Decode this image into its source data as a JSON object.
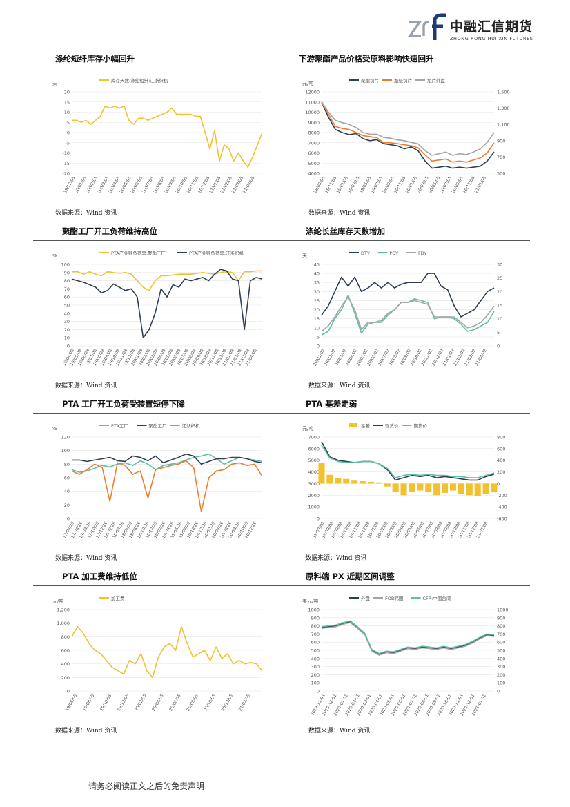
{
  "header": {
    "logo_mark": "zrf",
    "company_cn": "中融汇信期货",
    "company_en": "ZHONG RONG HUI XIN FUTURES",
    "brand_color": "#1f3b73"
  },
  "sections": [
    {
      "title": "涤纶短纤库存小幅回升",
      "source": "数据来源：Wind 资讯"
    },
    {
      "title": "下游聚酯产品价格受原料影响快速回升",
      "source": "数据来源：Wind 资讯"
    },
    {
      "title": "聚酯工厂开工负荷维持高位",
      "source": "数据来源：Wind 资讯"
    },
    {
      "title": "涤纶长丝库存天数增加",
      "source": "数据来源：Wind 资讯"
    },
    {
      "title": "PTA 工厂开工负荷受装置短停下降",
      "source": "数据来源：Wind 资讯"
    },
    {
      "title": "PTA 基差走弱",
      "source": "数据来源：Wind 资讯"
    },
    {
      "title": "PTA 加工费维持低位",
      "source": "数据来源：Wind 资讯"
    },
    {
      "title": "原料端 PX 近期区间调整",
      "source": "数据来源：Wind 资讯"
    }
  ],
  "footer": {
    "disclaimer": "请务必阅读正文之后的免责声明"
  },
  "chart_data": [
    {
      "type": "line",
      "yunit": "天",
      "ylim": [
        -20,
        20
      ],
      "yticks": [
        "20",
        "15",
        "10",
        "5",
        "0",
        "-5",
        "-10",
        "-15",
        "-20"
      ],
      "xticks": [
        "19/12/05",
        "20/01/05",
        "20/02/05",
        "20/03/05",
        "20/04/05",
        "20/05/05",
        "20/06/05",
        "20/07/05",
        "20/08/05",
        "20/09/05",
        "20/10/05",
        "20/11/05",
        "20/12/05",
        "21/01/05",
        "21/02/05",
        "21/03/05",
        "21/04/05"
      ],
      "legend": [
        "库存天数:涤纶短纤:江浙织机"
      ],
      "colors": [
        "#f2c12e"
      ],
      "series": [
        {
          "name": "库存天数:涤纶短纤:江浙织机",
          "values": [
            6,
            6,
            5,
            6,
            4,
            6,
            8,
            13,
            12,
            13,
            12,
            13,
            6,
            4,
            7,
            7,
            6,
            7,
            8,
            9,
            10,
            12,
            9,
            9,
            9,
            9,
            8,
            8,
            0,
            -8,
            1,
            -14,
            -6,
            -8,
            -14,
            -10,
            -14,
            -17,
            -12,
            -6,
            0
          ]
        }
      ]
    },
    {
      "type": "line",
      "yunit": "元/吨",
      "ylim": [
        4000,
        12000
      ],
      "y2lim": [
        500,
        1500
      ],
      "yticks": [
        "12000",
        "11000",
        "10000",
        "9000",
        "8000",
        "7000",
        "6000",
        "5000",
        "4000"
      ],
      "y2ticks": [
        "1,500",
        "1,300",
        "1,100",
        "900",
        "700",
        "500"
      ],
      "xticks": [
        "18/09/05",
        "18/11/05",
        "19/01/05",
        "19/03/05",
        "19/05/05",
        "19/07/05",
        "19/09/05",
        "19/11/05",
        "20/01/05",
        "20/03/05",
        "20/05/05",
        "20/07/05",
        "20/09/05",
        "20/11/05",
        "21/01/05"
      ],
      "legend": [
        "聚酯切片",
        "瓶级切片",
        "瓶片外盘"
      ],
      "colors": [
        "#2e3f55",
        "#ed7d31",
        "#a5a5a5"
      ],
      "series": [
        {
          "name": "聚酯切片",
          "values": [
            11000,
            9500,
            8300,
            8000,
            7800,
            7900,
            7400,
            7200,
            7300,
            6900,
            6800,
            6700,
            6400,
            6600,
            6200,
            5200,
            4500,
            4600,
            4700,
            4500,
            4600,
            4500,
            4600,
            4700,
            5200,
            6100
          ]
        },
        {
          "name": "瓶级切片",
          "values": [
            11000,
            9800,
            8600,
            8400,
            8300,
            8000,
            7700,
            7600,
            7500,
            7000,
            7000,
            6900,
            6800,
            6700,
            6500,
            5800,
            5200,
            5300,
            5400,
            5100,
            5200,
            5100,
            5300,
            5500,
            6000,
            7000
          ]
        },
        {
          "name": "瓶片外盘",
          "values": [
            1380,
            1250,
            1150,
            1120,
            1100,
            1060,
            1000,
            980,
            980,
            940,
            930,
            910,
            900,
            880,
            860,
            780,
            720,
            740,
            760,
            720,
            740,
            730,
            760,
            800,
            880,
            1000
          ]
        }
      ]
    },
    {
      "type": "line",
      "yunit": "%",
      "ylim": [
        0,
        100
      ],
      "yticks": [
        "100",
        "90",
        "80",
        "70",
        "60",
        "50",
        "40",
        "30",
        "20",
        "10",
        "0"
      ],
      "xticks": [
        "19/04/08",
        "19/05/08",
        "19/06/08",
        "19/07/08",
        "19/08/08",
        "19/09/08",
        "19/10/08",
        "19/11/08",
        "19/12/08",
        "20/01/08",
        "20/02/08",
        "20/03/08",
        "20/04/08",
        "20/05/08",
        "20/06/08",
        "20/07/08",
        "20/08/08",
        "20/09/08",
        "20/10/08",
        "20/11/08",
        "20/12/08",
        "21/01/08",
        "21/02/08",
        "21/03/08",
        "21/04/08"
      ],
      "legend": [
        "PTA产业链负荷率:聚酯工厂",
        "PTA产业链负荷率:江浙织机"
      ],
      "colors": [
        "#f2c12e",
        "#2e3f55"
      ],
      "series": [
        {
          "name": "PTA产业链负荷率:聚酯工厂",
          "values": [
            91,
            91,
            88,
            91,
            88,
            86,
            91,
            90,
            89,
            90,
            88,
            80,
            72,
            68,
            80,
            86,
            86,
            87,
            88,
            88,
            88,
            89,
            90,
            89,
            88,
            90,
            91,
            90,
            80,
            91,
            91,
            92,
            92
          ]
        },
        {
          "name": "PTA产业链负荷率:江浙织机",
          "values": [
            82,
            80,
            78,
            75,
            72,
            65,
            68,
            76,
            72,
            68,
            70,
            60,
            10,
            20,
            40,
            70,
            60,
            75,
            72,
            82,
            80,
            82,
            84,
            80,
            88,
            94,
            92,
            82,
            80,
            20,
            80,
            84,
            82
          ]
        }
      ]
    },
    {
      "type": "line",
      "yunit": "天",
      "ylim": [
        0,
        45
      ],
      "y2lim": [
        0,
        30
      ],
      "yticks": [
        "45",
        "40",
        "35",
        "30",
        "25",
        "20",
        "15",
        "10",
        "5",
        "0"
      ],
      "y2ticks": [
        "30",
        "25",
        "20",
        "15",
        "10",
        "5",
        "0"
      ],
      "xticks": [
        "20/01/02",
        "20/02/02",
        "20/03/02",
        "20/04/02",
        "20/05/02",
        "20/06/02",
        "20/07/02",
        "20/08/02",
        "20/09/02",
        "20/10/02",
        "20/11/02",
        "20/12/02",
        "21/01/02",
        "21/02/02",
        "21/03/02",
        "21/04/02"
      ],
      "legend": [
        "DTY",
        "POY",
        "FDY"
      ],
      "colors": [
        "#2e3f55",
        "#5bbfa3",
        "#a5a5a5"
      ],
      "series": [
        {
          "name": "DTY",
          "values": [
            17,
            22,
            30,
            38,
            33,
            38,
            30,
            32,
            35,
            32,
            35,
            32,
            34,
            35,
            35,
            35,
            40,
            40,
            33,
            31,
            22,
            16,
            18,
            20,
            25,
            30,
            32
          ]
        },
        {
          "name": "POY",
          "values": [
            6,
            8,
            15,
            20,
            28,
            18,
            7,
            12,
            13,
            13,
            17,
            20,
            24,
            24,
            26,
            25,
            24,
            15,
            16,
            16,
            15,
            12,
            8,
            9,
            11,
            13,
            19
          ]
        },
        {
          "name": "FDY",
          "values": [
            8,
            11,
            16,
            22,
            27,
            20,
            9,
            13,
            13,
            14,
            18,
            20,
            24,
            24,
            25,
            24,
            23,
            16,
            16,
            16,
            16,
            13,
            10,
            11,
            13,
            17,
            22
          ]
        }
      ]
    },
    {
      "type": "line",
      "yunit": "%",
      "ylim": [
        0,
        120
      ],
      "yticks": [
        "120",
        "100",
        "80",
        "60",
        "40",
        "20",
        "0"
      ],
      "xticks": [
        "17/04/26",
        "17/06/26",
        "17/08/26",
        "17/10/26",
        "17/12/26",
        "18/02/26",
        "18/04/26",
        "18/06/26",
        "18/08/26",
        "18/10/26",
        "18/12/26",
        "19/02/26",
        "19/04/26",
        "19/06/26",
        "19/08/26",
        "19/10/26",
        "19/12/26",
        "20/02/26",
        "20/04/26",
        "20/06/26",
        "20/08/26",
        "20/10/26",
        "20/12/26"
      ],
      "legend": [
        "PTA工厂",
        "聚酯工厂",
        "江浙织机"
      ],
      "colors": [
        "#5bbfa3",
        "#2e3f55",
        "#ed7d31"
      ],
      "series": [
        {
          "name": "PTA工厂",
          "values": [
            72,
            68,
            70,
            74,
            78,
            76,
            80,
            82,
            78,
            85,
            80,
            72,
            78,
            80,
            82,
            86,
            90,
            92,
            95,
            88,
            80,
            85,
            90,
            88,
            86,
            84
          ]
        },
        {
          "name": "聚酯工厂",
          "values": [
            86,
            86,
            84,
            86,
            88,
            90,
            85,
            84,
            92,
            90,
            85,
            92,
            82,
            86,
            90,
            95,
            92,
            80,
            84,
            88,
            88,
            90,
            90,
            88,
            84,
            82
          ]
        },
        {
          "name": "江浙织机",
          "values": [
            70,
            65,
            72,
            80,
            75,
            25,
            82,
            78,
            65,
            70,
            30,
            72,
            75,
            78,
            80,
            85,
            75,
            10,
            60,
            70,
            72,
            80,
            82,
            78,
            80,
            62
          ]
        }
      ]
    },
    {
      "type": "line",
      "yunit": "元/吨",
      "ylim": [
        0,
        7000
      ],
      "y2lim": [
        -600,
        800
      ],
      "yticks": [
        "7000",
        "6000",
        "5000",
        "4000",
        "3000",
        "2000",
        "1000",
        "0"
      ],
      "y2ticks": [
        "800",
        "600",
        "400",
        "200",
        "0",
        "-200",
        "-400",
        "-600"
      ],
      "xticks": [
        "19/07/08",
        "19/08/08",
        "19/09/08",
        "19/10/08",
        "19/11/08",
        "19/12/08",
        "20/01/08",
        "20/02/08",
        "20/03/08",
        "20/04/08",
        "20/05/08",
        "20/06/08",
        "20/07/08",
        "20/08/08",
        "20/09/08",
        "20/10/08",
        "20/11/08",
        "20/12/08",
        "21/01/08"
      ],
      "legend": [
        "基差",
        "现货价",
        "期货价"
      ],
      "colors": [
        "#f2c12e",
        "#2e3f55",
        "#5bbfa3"
      ],
      "series": [
        {
          "name": "基差",
          "values": [
            350,
            150,
            100,
            80,
            50,
            40,
            30,
            20,
            -50,
            -150,
            -200,
            -150,
            -120,
            -150,
            -200,
            -160,
            -120,
            -180,
            -200,
            -220,
            -180,
            -150
          ]
        },
        {
          "name": "现货价",
          "values": [
            6600,
            5300,
            5000,
            4900,
            4800,
            4900,
            4900,
            4700,
            4200,
            3300,
            3500,
            3700,
            3600,
            3700,
            3500,
            3600,
            3500,
            3400,
            3300,
            3300,
            3600,
            3800
          ]
        },
        {
          "name": "期货价",
          "values": [
            6300,
            5200,
            4900,
            4800,
            4800,
            4900,
            4900,
            4700,
            4300,
            3500,
            3700,
            3800,
            3700,
            3800,
            3700,
            3700,
            3600,
            3600,
            3500,
            3500,
            3700,
            3900
          ]
        }
      ]
    },
    {
      "type": "line",
      "yunit": "元/吨",
      "ylim": [
        0,
        1200
      ],
      "yticks": [
        "1,200",
        "1,000",
        "800",
        "600",
        "400",
        "200",
        "0"
      ],
      "xticks": [
        "19/06/05",
        "19/08/05",
        "19/10/05",
        "19/12/05",
        "20/02/05",
        "20/04/05",
        "20/06/05",
        "20/08/05",
        "20/10/05",
        "20/12/05",
        "21/02/05"
      ],
      "legend": [
        "加工费"
      ],
      "colors": [
        "#f2c12e"
      ],
      "series": [
        {
          "name": "加工费",
          "values": [
            800,
            950,
            850,
            700,
            600,
            550,
            450,
            350,
            300,
            250,
            450,
            400,
            550,
            300,
            200,
            500,
            650,
            700,
            600,
            950,
            700,
            500,
            550,
            600,
            450,
            650,
            480,
            550,
            400,
            450,
            400,
            420,
            400,
            300
          ]
        }
      ]
    },
    {
      "type": "line",
      "yunit": "美元/吨",
      "ylim": [
        0,
        1000
      ],
      "y2lim": [
        0,
        1000
      ],
      "yticks": [
        "1000",
        "900",
        "800",
        "700",
        "600",
        "500",
        "400",
        "300",
        "200",
        "100",
        "0"
      ],
      "y2ticks": [
        "1000",
        "900",
        "800",
        "700",
        "600",
        "500",
        "400",
        "300",
        "200",
        "100",
        "0"
      ],
      "xticks": [
        "2019-11-01",
        "2019-12-01",
        "2020-01-01",
        "2020-02-01",
        "2020-03-01",
        "2020-04-01",
        "2020-05-01",
        "2020-06-01",
        "2020-07-01",
        "2020-08-01",
        "2020-09-01",
        "2020-10-01",
        "2020-11-01",
        "2020-12-01",
        "2021-01-01"
      ],
      "legend": [
        "外盘",
        "FOB韩国",
        "CFR:中国台湾"
      ],
      "colors": [
        "#2e3f55",
        "#a5a5a5",
        "#5bbfa3"
      ],
      "series": [
        {
          "name": "外盘",
          "values": [
            780,
            790,
            800,
            830,
            850,
            780,
            700,
            500,
            450,
            480,
            470,
            500,
            530,
            520,
            540,
            530,
            520,
            540,
            520,
            540,
            560,
            600,
            650,
            690,
            680
          ]
        },
        {
          "name": "FOB韩国",
          "values": [
            770,
            780,
            790,
            820,
            840,
            770,
            690,
            490,
            440,
            470,
            460,
            490,
            520,
            510,
            530,
            520,
            510,
            530,
            510,
            530,
            550,
            590,
            640,
            680,
            670
          ]
        },
        {
          "name": "CFR:中国台湾",
          "values": [
            790,
            800,
            810,
            840,
            860,
            790,
            710,
            510,
            460,
            490,
            480,
            510,
            540,
            530,
            550,
            540,
            530,
            550,
            530,
            550,
            570,
            610,
            660,
            700,
            690
          ]
        }
      ]
    }
  ]
}
